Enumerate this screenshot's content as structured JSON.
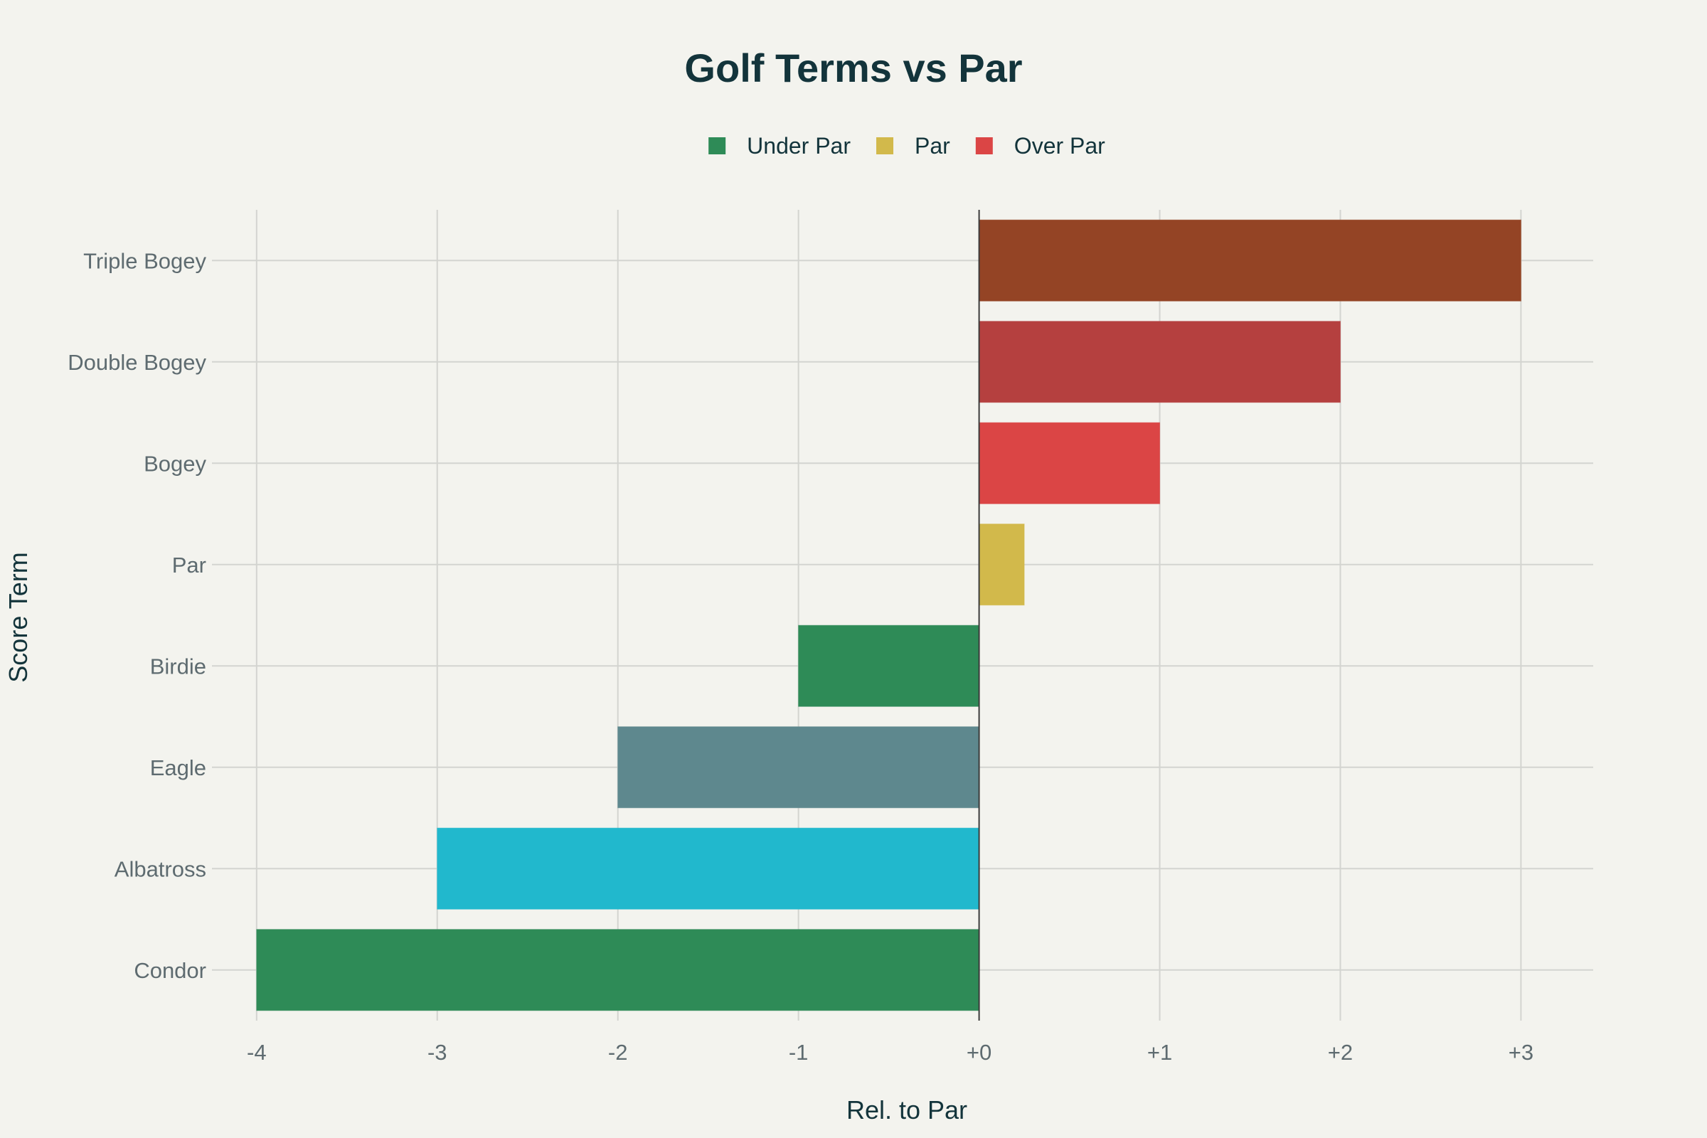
{
  "chart_data": {
    "type": "bar",
    "orientation": "horizontal",
    "title": "Golf Terms vs Par",
    "xlabel": "Rel. to Par",
    "ylabel": "Score Term",
    "categories": [
      "Condor",
      "Albatross",
      "Eagle",
      "Birdie",
      "Par",
      "Bogey",
      "Double Bogey",
      "Triple Bogey"
    ],
    "values": [
      -4,
      -3,
      -2,
      -1,
      0.25,
      1,
      2,
      3
    ],
    "bar_colors": [
      "#2e8b57",
      "#21b8cd",
      "#5e888e",
      "#2e8b57",
      "#d2b94b",
      "#db4545",
      "#b5403f",
      "#944425"
    ],
    "xlim": [
      -4.2,
      3.4
    ],
    "xticks": [
      -4,
      -3,
      -2,
      -1,
      0,
      1,
      2,
      3
    ],
    "xtick_labels": [
      "-4",
      "-3",
      "-2",
      "-1",
      "+0",
      "+1",
      "+2",
      "+3"
    ],
    "grid": true,
    "legend_position": "top-center",
    "legend": [
      {
        "label": "Under Par",
        "color": "#2e8b57"
      },
      {
        "label": "Par",
        "color": "#d2b94b"
      },
      {
        "label": "Over Par",
        "color": "#db4545"
      }
    ]
  }
}
